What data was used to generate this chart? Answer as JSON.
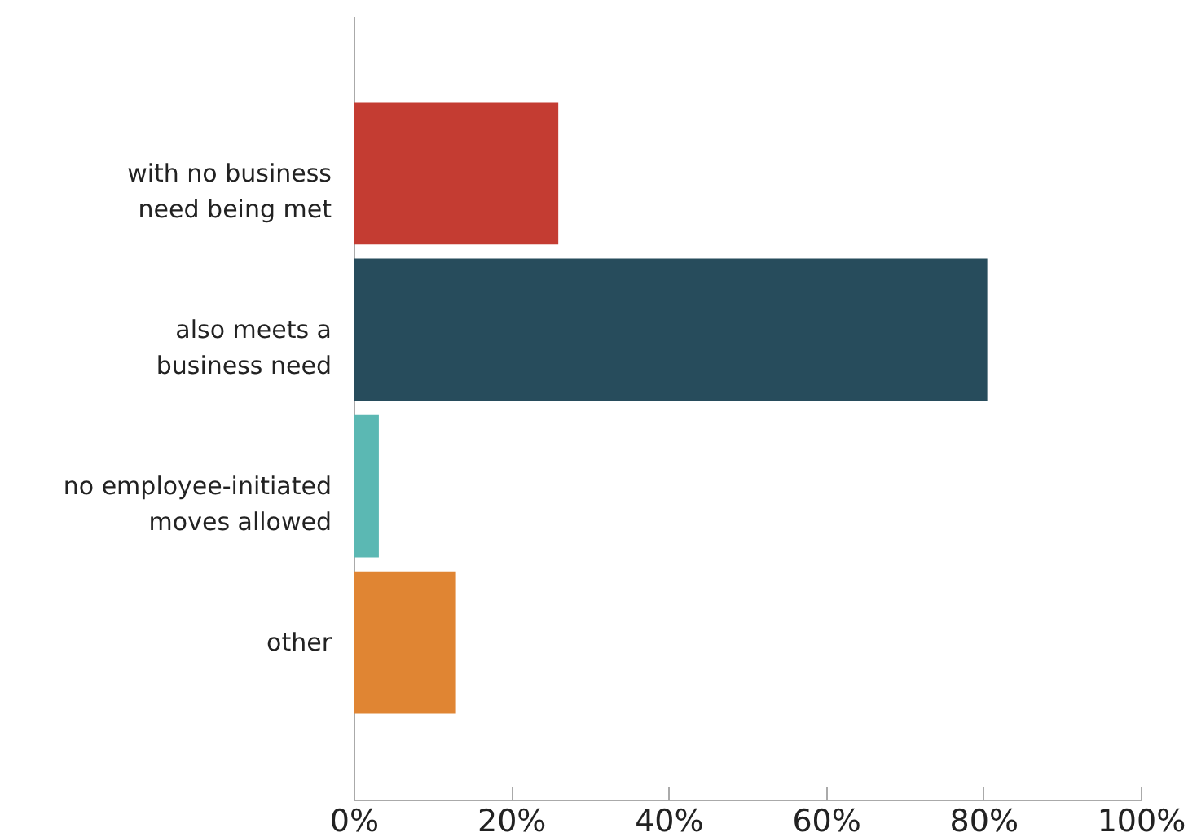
{
  "chart_data": {
    "type": "bar",
    "orientation": "horizontal",
    "categories": [
      "with no business need being met",
      "also meets a business need",
      "no employee-initiated moves allowed",
      "other"
    ],
    "values": [
      26,
      80.5,
      3.2,
      13
    ],
    "colors": [
      "#c43c32",
      "#274c5c",
      "#5bb8b3",
      "#e08533"
    ],
    "xlim": [
      0,
      100
    ],
    "xticks": [
      {
        "value": 0,
        "label": "0%"
      },
      {
        "value": 20,
        "label": "20%"
      },
      {
        "value": 40,
        "label": "40%"
      },
      {
        "value": 60,
        "label": "60%"
      },
      {
        "value": 80,
        "label": "80%"
      },
      {
        "value": 100,
        "label": "100%"
      }
    ],
    "grid": false
  }
}
